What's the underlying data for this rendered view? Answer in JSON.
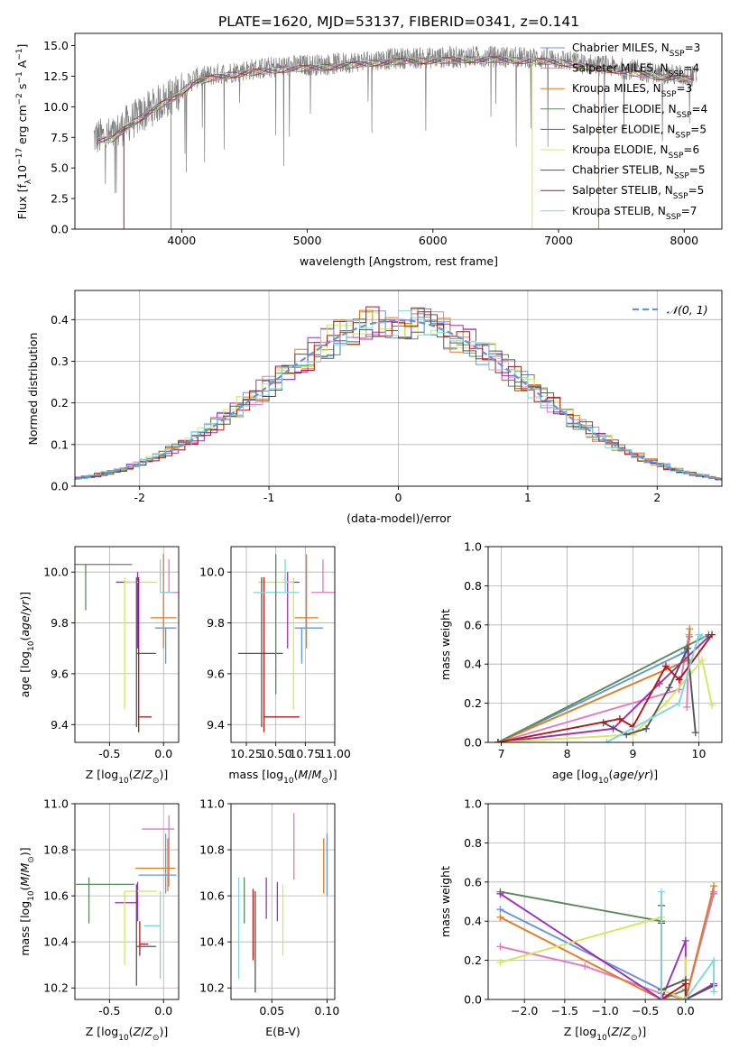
{
  "figure_title": "PLATE=1620, MJD=53137, FIBERID=0341, z=0.141",
  "colors": {
    "Chabrier MILES": "#6495dc",
    "Salpeter MILES": "#e377c2",
    "Kroupa MILES": "#e07b20",
    "Chabrier ELODIE": "#5a8a5a",
    "Salpeter ELODIE": "#9b30b8",
    "Kroupa ELODIE": "#d4e85a",
    "Chabrier STELIB": "#555555",
    "Salpeter STELIB": "#b01818",
    "Kroupa STELIB": "#7fd6dc"
  },
  "chart_data": [
    {
      "id": "spectrum",
      "type": "line",
      "xlabel": "wavelength [Angstrom, rest frame]",
      "ylabel": "Flux [f",
      "ylabel_parts": {
        "base": "Flux [f",
        "sub": "λ",
        "mid": "10",
        "sup1": "−17",
        "rest": " erg cm",
        "sup2": "−2",
        "rest2": " s",
        "sup3": "−1",
        "rest3": " A",
        "sup4": "−1",
        "end": "]"
      },
      "xlim": [
        3150,
        8300
      ],
      "ylim": [
        0,
        16
      ],
      "xticks": [
        4000,
        5000,
        6000,
        7000,
        8000
      ],
      "yticks": [
        0.0,
        2.5,
        5.0,
        7.5,
        10.0,
        12.5,
        15.0
      ],
      "legend_position": "right",
      "legend": [
        {
          "label": "Chabrier MILES, N",
          "sub": "SSP",
          "eq": "=3",
          "color": "#6495dc"
        },
        {
          "label": "Salpeter MILES, N",
          "sub": "SSP",
          "eq": "=4",
          "color": "#e377c2"
        },
        {
          "label": "Kroupa MILES, N",
          "sub": "SSP",
          "eq": "=3",
          "color": "#e07b20"
        },
        {
          "label": "Chabrier ELODIE, N",
          "sub": "SSP",
          "eq": "=4",
          "color": "#5a8a5a"
        },
        {
          "label": "Salpeter ELODIE, N",
          "sub": "SSP",
          "eq": "=5",
          "color": "#9b30b8"
        },
        {
          "label": "Kroupa ELODIE, N",
          "sub": "SSP",
          "eq": "=6",
          "color": "#d4e85a"
        },
        {
          "label": "Chabrier STELIB, N",
          "sub": "SSP",
          "eq": "=5",
          "color": "#555555"
        },
        {
          "label": "Salpeter STELIB, N",
          "sub": "SSP",
          "eq": "=5",
          "color": "#b01818"
        },
        {
          "label": "Kroupa STELIB, N",
          "sub": "SSP",
          "eq": "=7",
          "color": "#7fd6dc"
        }
      ],
      "data_series": {
        "name": "data",
        "color": "#808080",
        "x_range": [
          3300,
          8100
        ]
      },
      "continuum_points": {
        "x": [
          3300,
          3450,
          3550,
          3700,
          3850,
          3950,
          4100,
          4300,
          4500,
          4800,
          5000,
          5200,
          5500,
          5800,
          6000,
          6300,
          6500,
          6800,
          7000,
          7200,
          7400,
          7600,
          7800,
          8050
        ],
        "y": [
          7.5,
          7.6,
          8.5,
          9.5,
          10.5,
          11.0,
          12.3,
          12.7,
          13.0,
          13.3,
          13.4,
          13.5,
          13.8,
          14.0,
          14.0,
          14.1,
          14.1,
          14.0,
          13.9,
          13.5,
          13.3,
          13.0,
          12.7,
          12.5
        ]
      },
      "model_dropouts": [
        {
          "x": 3540,
          "color": "#b01818"
        },
        {
          "x": 3915,
          "color": "#e07b20"
        },
        {
          "x": 6790,
          "color": "#d4e85a"
        },
        {
          "x": 7320,
          "color": "#e07b20"
        }
      ]
    },
    {
      "id": "residuals",
      "type": "histogram",
      "xlabel": "(data-model)/error",
      "ylabel": "Normed distribution",
      "xlim": [
        -2.5,
        2.5
      ],
      "ylim": [
        0,
        0.47
      ],
      "xticks": [
        -2,
        -1,
        0,
        1,
        2
      ],
      "yticks": [
        0.0,
        0.1,
        0.2,
        0.3,
        0.4
      ],
      "legend_position": "top-right",
      "legend": {
        "label": "𝒩(0, 1)",
        "color": "#6495dc"
      },
      "bin_width": 0.1
    },
    {
      "id": "age_vs_Z",
      "type": "errorbar",
      "xlabel": "Z [log10(Z/Z⊙)]",
      "ylabel": "age  [log10(age/yr)]",
      "xlim": [
        -0.82,
        0.14
      ],
      "ylim": [
        9.33,
        10.1
      ],
      "xticks": [
        -0.5,
        0.0
      ],
      "yticks": [
        9.4,
        9.6,
        9.8,
        10.0
      ],
      "points": [
        {
          "series": "Chabrier MILES",
          "x": 0.02,
          "y": 9.78,
          "xerr": [
            0.1,
            0.1
          ],
          "yerr": [
            0.14,
            0.0
          ]
        },
        {
          "series": "Salpeter MILES",
          "x": 0.05,
          "y": 9.92,
          "xerr": [
            0.07,
            0.09
          ],
          "yerr": [
            0.0,
            0.13
          ]
        },
        {
          "series": "Kroupa MILES",
          "x": 0.0,
          "y": 9.82,
          "xerr": [
            0.12,
            0.12
          ],
          "yerr": [
            0.12,
            0.25
          ]
        },
        {
          "series": "Chabrier ELODIE",
          "x": -0.72,
          "y": 10.03,
          "xerr": [
            0.1,
            0.43
          ],
          "yerr": [
            0.18,
            0.0
          ]
        },
        {
          "series": "Salpeter ELODIE",
          "x": -0.24,
          "y": 9.96,
          "xerr": [
            0.2,
            0.0
          ],
          "yerr": [
            0.26,
            0.04
          ]
        },
        {
          "series": "Kroupa ELODIE",
          "x": -0.36,
          "y": 9.96,
          "xerr": [
            0.0,
            0.3
          ],
          "yerr": [
            0.5,
            0.02
          ]
        },
        {
          "series": "Chabrier STELIB",
          "x": -0.25,
          "y": 9.68,
          "xerr": [
            0.0,
            0.18
          ],
          "yerr": [
            0.29,
            0.3
          ]
        },
        {
          "series": "Salpeter STELIB",
          "x": -0.23,
          "y": 9.43,
          "xerr": [
            0.0,
            0.12
          ],
          "yerr": [
            0.06,
            0.55
          ]
        },
        {
          "series": "Kroupa STELIB",
          "x": -0.03,
          "y": 9.92,
          "xerr": [
            0.0,
            0.12
          ],
          "yerr": [
            0.0,
            0.13
          ]
        }
      ]
    },
    {
      "id": "age_vs_mass",
      "type": "errorbar",
      "xlabel": "mass [log10(M/M⊙)]",
      "ylabel": "",
      "xlim": [
        10.12,
        11.0
      ],
      "ylim": [
        9.33,
        10.1
      ],
      "xticks": [
        10.25,
        10.5,
        10.75,
        11.0
      ],
      "yticks": [
        9.4,
        9.6,
        9.8,
        10.0
      ],
      "points": [
        {
          "series": "Chabrier MILES",
          "x": 10.72,
          "y": 9.78,
          "xerr": [
            0.06,
            0.18
          ],
          "yerr": [
            0.14,
            0.0
          ]
        },
        {
          "series": "Salpeter MILES",
          "x": 10.9,
          "y": 9.92,
          "xerr": [
            0.1,
            0.1
          ],
          "yerr": [
            0.0,
            0.13
          ]
        },
        {
          "series": "Kroupa MILES",
          "x": 10.76,
          "y": 9.82,
          "xerr": [
            0.1,
            0.1
          ],
          "yerr": [
            0.12,
            0.25
          ]
        },
        {
          "series": "Salpeter ELODIE",
          "x": 10.6,
          "y": 9.96,
          "xerr": [
            0.0,
            0.1
          ],
          "yerr": [
            0.26,
            0.04
          ]
        },
        {
          "series": "Kroupa ELODIE",
          "x": 10.65,
          "y": 9.96,
          "xerr": [
            0.3,
            0.0
          ],
          "yerr": [
            0.5,
            0.02
          ]
        },
        {
          "series": "Chabrier STELIB",
          "x": 10.38,
          "y": 9.68,
          "xerr": [
            0.2,
            0.18
          ],
          "yerr": [
            0.29,
            0.3
          ]
        },
        {
          "series": "Salpeter STELIB",
          "x": 10.4,
          "y": 9.43,
          "xerr": [
            0.0,
            0.3
          ],
          "yerr": [
            0.06,
            0.55
          ]
        },
        {
          "series": "Kroupa STELIB",
          "x": 10.58,
          "y": 9.92,
          "xerr": [
            0.27,
            0.12
          ],
          "yerr": [
            0.0,
            0.13
          ]
        },
        {
          "series": "Chabrier ELODIE",
          "x": 10.5,
          "y": 9.97,
          "xerr": [
            0.0,
            0.0
          ],
          "yerr": [
            0.45,
            0.1
          ]
        }
      ]
    },
    {
      "id": "mass_weight_vs_age",
      "type": "line",
      "xlabel": "age  [log10(age/yr)]",
      "ylabel": "mass weight",
      "xlim": [
        6.8,
        10.35
      ],
      "ylim": [
        0,
        1.0
      ],
      "xticks": [
        7,
        8,
        9,
        10
      ],
      "yticks": [
        0.0,
        0.2,
        0.4,
        0.6,
        0.8,
        1.0
      ],
      "series": [
        {
          "name": "Chabrier MILES",
          "x": [
            6.95,
            9.78,
            9.86
          ],
          "y": [
            0.0,
            0.46,
            0.54
          ]
        },
        {
          "name": "Salpeter MILES",
          "x": [
            6.95,
            9.7,
            9.85,
            9.82
          ],
          "y": [
            0.0,
            0.27,
            0.55,
            0.18
          ]
        },
        {
          "name": "Kroupa MILES",
          "x": [
            6.95,
            9.83,
            9.86
          ],
          "y": [
            0.0,
            0.42,
            0.58
          ]
        },
        {
          "name": "Chabrier ELODIE",
          "x": [
            6.95,
            10.15
          ],
          "y": [
            0.0,
            0.55
          ]
        },
        {
          "name": "Salpeter ELODIE",
          "x": [
            6.95,
            8.7,
            9.4,
            10.15
          ],
          "y": [
            0.0,
            0.07,
            0.3,
            0.54
          ]
        },
        {
          "name": "Kroupa ELODIE",
          "x": [
            6.95,
            9.0,
            9.5,
            10.05,
            10.2
          ],
          "y": [
            0.0,
            0.04,
            0.2,
            0.42,
            0.19
          ]
        },
        {
          "name": "Chabrier STELIB",
          "x": [
            8.55,
            8.9,
            9.2,
            9.55,
            9.83,
            9.95
          ],
          "y": [
            0.1,
            0.04,
            0.07,
            0.28,
            0.48,
            0.05
          ]
        },
        {
          "name": "Salpeter STELIB",
          "x": [
            6.95,
            8.8,
            9.0,
            9.5,
            9.7,
            10.2
          ],
          "y": [
            0.0,
            0.12,
            0.08,
            0.39,
            0.32,
            0.55
          ]
        },
        {
          "name": "Kroupa STELIB",
          "x": [
            8.6,
            9.7,
            10.0,
            10.05
          ],
          "y": [
            0.0,
            0.2,
            0.55,
            0.54
          ]
        }
      ]
    },
    {
      "id": "mass_vs_Z",
      "type": "errorbar",
      "xlabel": "Z [log10(Z/Z⊙)]",
      "ylabel": "mass [log10(M/M⊙)]",
      "xlim": [
        -0.82,
        0.14
      ],
      "ylim": [
        10.15,
        11.0
      ],
      "xticks": [
        -0.5,
        0.0
      ],
      "yticks": [
        10.2,
        10.4,
        10.6,
        10.8,
        11.0
      ],
      "points": [
        {
          "series": "Chabrier MILES",
          "x": 0.02,
          "y": 10.69,
          "xerr": [
            0.25,
            0.1
          ],
          "yerr": [
            0.08,
            0.18
          ]
        },
        {
          "series": "Salpeter MILES",
          "x": 0.05,
          "y": 10.89,
          "xerr": [
            0.25,
            0.05
          ],
          "yerr": [
            0.25,
            0.06
          ]
        },
        {
          "series": "Kroupa MILES",
          "x": 0.04,
          "y": 10.72,
          "xerr": [
            0.3,
            0.07
          ],
          "yerr": [
            0.1,
            0.13
          ]
        },
        {
          "series": "Chabrier ELODIE",
          "x": -0.69,
          "y": 10.65,
          "xerr": [
            0.12,
            0.42
          ],
          "yerr": [
            0.17,
            0.03
          ]
        },
        {
          "series": "Salpeter ELODIE",
          "x": -0.24,
          "y": 10.57,
          "xerr": [
            0.21,
            0.0
          ],
          "yerr": [
            0.08,
            0.09
          ]
        },
        {
          "series": "Kroupa ELODIE",
          "x": -0.36,
          "y": 10.62,
          "xerr": [
            0.0,
            0.3
          ],
          "yerr": [
            0.32,
            0.0
          ]
        },
        {
          "series": "Chabrier STELIB",
          "x": -0.25,
          "y": 10.38,
          "xerr": [
            0.0,
            0.18
          ],
          "yerr": [
            0.17,
            0.27
          ]
        },
        {
          "series": "Salpeter STELIB",
          "x": -0.22,
          "y": 10.39,
          "xerr": [
            0.0,
            0.08
          ],
          "yerr": [
            0.05,
            0.1
          ]
        },
        {
          "series": "Kroupa STELIB",
          "x": -0.03,
          "y": 10.47,
          "xerr": [
            0.15,
            0.0
          ],
          "yerr": [
            0.23,
            0.15
          ]
        }
      ]
    },
    {
      "id": "mass_vs_EBV",
      "type": "errorbar",
      "xlabel": "E(B-V)",
      "ylabel": "",
      "xlim": [
        0.013,
        0.107
      ],
      "ylim": [
        10.15,
        11.0
      ],
      "xticks": [
        0.05,
        0.1
      ],
      "yticks": [
        10.2,
        10.4,
        10.6,
        10.8,
        11.0
      ],
      "points": [
        {
          "series": "Kroupa STELIB",
          "x": 0.02,
          "y": 10.47,
          "yerr": [
            0.23,
            0.21
          ]
        },
        {
          "series": "Chabrier ELODIE",
          "x": 0.025,
          "y": 10.58,
          "yerr": [
            0.1,
            0.1
          ]
        },
        {
          "series": "Salpeter STELIB",
          "x": 0.033,
          "y": 10.48,
          "yerr": [
            0.16,
            0.15
          ]
        },
        {
          "series": "Chabrier STELIB",
          "x": 0.035,
          "y": 10.4,
          "yerr": [
            0.22,
            0.22
          ]
        },
        {
          "series": "Salpeter ELODIE",
          "x": 0.045,
          "y": 10.59,
          "yerr": [
            0.09,
            0.09
          ]
        },
        {
          "series": "Salpeter ELODIE",
          "x": 0.055,
          "y": 10.57,
          "yerr": [
            0.08,
            0.09
          ]
        },
        {
          "series": "Kroupa ELODIE",
          "x": 0.06,
          "y": 10.5,
          "yerr": [
            0.16,
            0.15
          ]
        },
        {
          "series": "Salpeter MILES",
          "x": 0.07,
          "y": 10.82,
          "yerr": [
            0.15,
            0.14
          ]
        },
        {
          "series": "Kroupa MILES",
          "x": 0.097,
          "y": 10.73,
          "yerr": [
            0.12,
            0.12
          ]
        },
        {
          "series": "Chabrier MILES",
          "x": 0.1,
          "y": 10.73,
          "yerr": [
            0.13,
            0.14
          ]
        }
      ]
    },
    {
      "id": "mass_weight_vs_Z",
      "type": "line",
      "xlabel": "Z [log10(Z/Z⊙)]",
      "ylabel": "mass weight",
      "xlim": [
        -2.45,
        0.45
      ],
      "ylim": [
        0,
        1.0
      ],
      "xticks": [
        -2.0,
        -1.5,
        -1.0,
        -0.5,
        0.0
      ],
      "yticks": [
        0.0,
        0.2,
        0.4,
        0.6,
        0.8,
        1.0
      ],
      "series": [
        {
          "name": "Chabrier MILES",
          "x": [
            -2.3,
            -0.3,
            0.0,
            0.35
          ],
          "y": [
            0.46,
            0.05,
            0.0,
            0.54
          ]
        },
        {
          "name": "Salpeter MILES",
          "x": [
            -2.3,
            -1.25,
            -0.3,
            0.0,
            0.35
          ],
          "y": [
            0.27,
            0.17,
            0.03,
            0.0,
            0.55
          ]
        },
        {
          "name": "Kroupa MILES",
          "x": [
            -2.3,
            -0.3,
            0.0,
            0.35
          ],
          "y": [
            0.42,
            0.0,
            0.0,
            0.58
          ]
        },
        {
          "name": "Chabrier ELODIE",
          "x": [
            -2.3,
            -0.3,
            -0.3,
            0.0
          ],
          "y": [
            0.55,
            0.4,
            0.0,
            0.05
          ]
        },
        {
          "name": "Salpeter ELODIE",
          "x": [
            -2.3,
            -0.3,
            0.0,
            0.0,
            0.35
          ],
          "y": [
            0.54,
            0.0,
            0.3,
            0.0,
            0.08
          ]
        },
        {
          "name": "Kroupa ELODIE",
          "x": [
            -2.3,
            -0.3,
            -0.3,
            0.0,
            0.0
          ],
          "y": [
            0.19,
            0.42,
            0.05,
            0.0,
            0.2
          ]
        },
        {
          "name": "Chabrier STELIB",
          "x": [
            -0.3,
            -0.3,
            0.0,
            0.0,
            0.35
          ],
          "y": [
            0.48,
            0.05,
            0.1,
            0.0,
            0.07
          ]
        },
        {
          "name": "Salpeter STELIB",
          "x": [
            -0.3,
            -0.3,
            0.0,
            0.0
          ],
          "y": [
            0.39,
            0.0,
            0.08,
            0.0
          ]
        },
        {
          "name": "Kroupa STELIB",
          "x": [
            -0.3,
            -0.3,
            0.0,
            0.35,
            0.35
          ],
          "y": [
            0.55,
            0.0,
            0.0,
            0.2,
            0.04
          ]
        }
      ]
    }
  ]
}
